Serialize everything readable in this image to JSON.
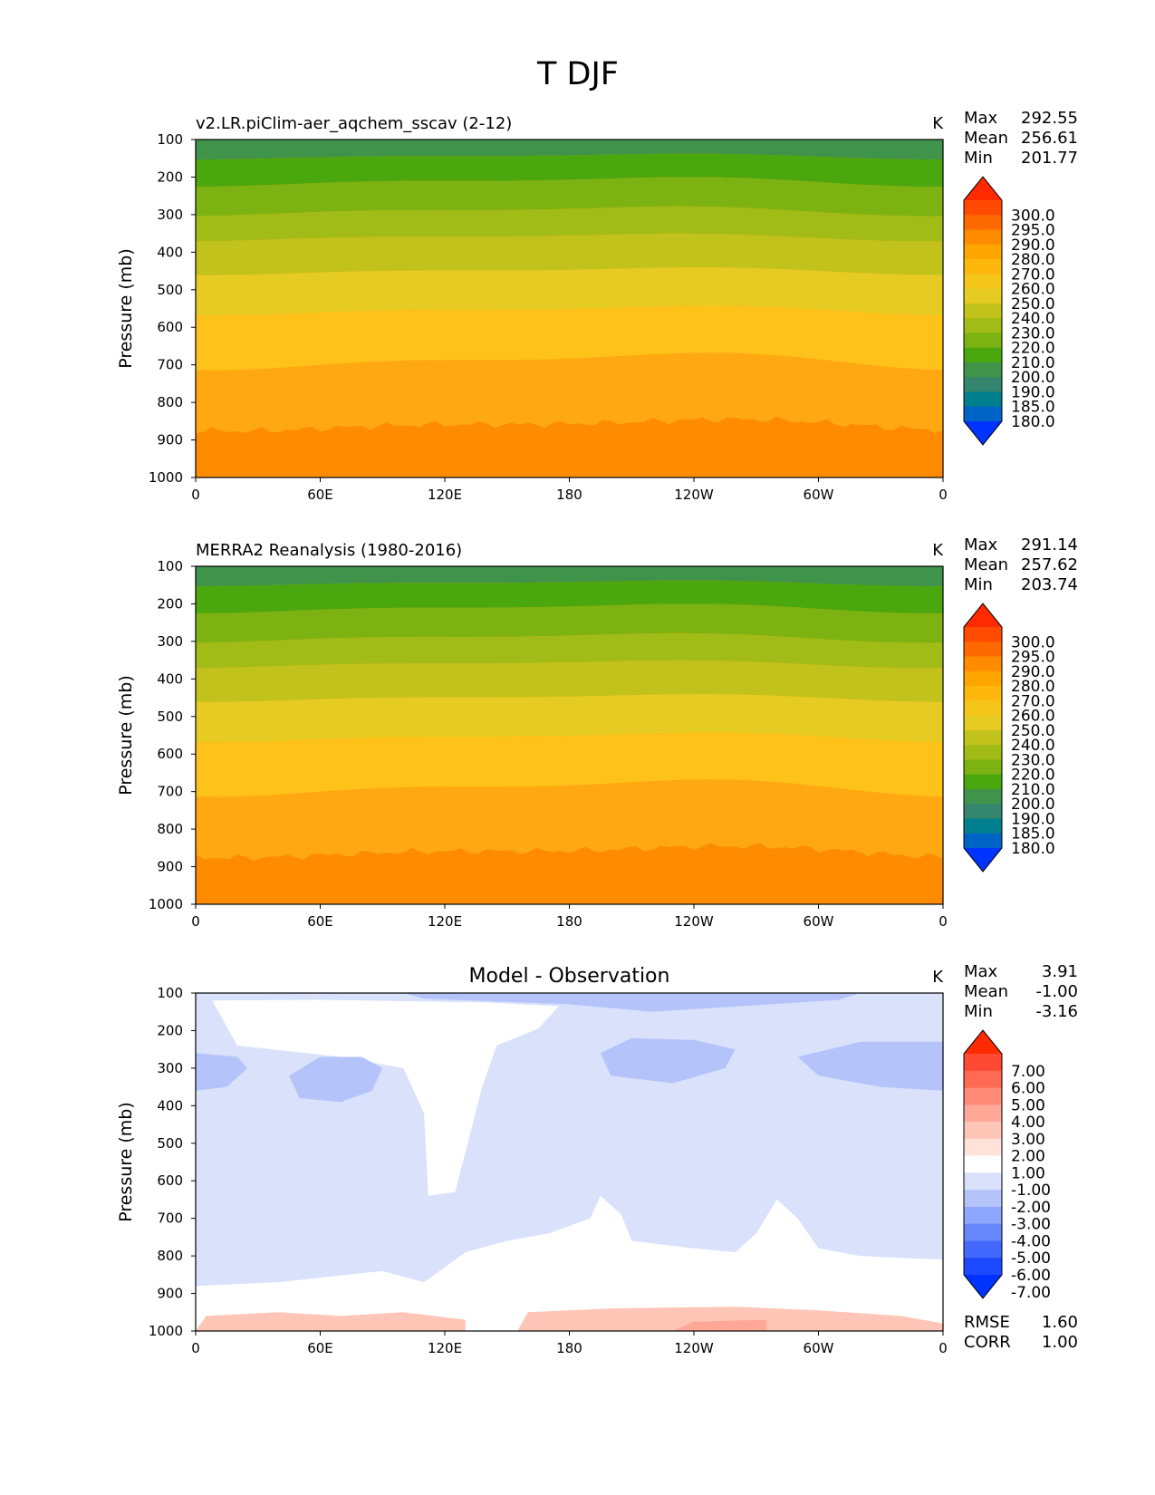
{
  "figure_title": "T DJF",
  "x_ticks": [
    "0",
    "60E",
    "120E",
    "180",
    "120W",
    "60W",
    "0"
  ],
  "y_ticks": [
    "100",
    "200",
    "300",
    "400",
    "500",
    "600",
    "700",
    "800",
    "900",
    "1000"
  ],
  "chart_data": [
    {
      "type": "heatmap",
      "title": "v2.LR.piClim-aer_aqchem_sscav (2-12)",
      "units": "K",
      "ylabel": "Pressure (mb)",
      "xlim": [
        0,
        360
      ],
      "ylim": [
        1000,
        100
      ],
      "stats": [
        {
          "label": "Max",
          "value": "292.55"
        },
        {
          "label": "Mean",
          "value": "256.61"
        },
        {
          "label": "Min",
          "value": "201.77"
        }
      ],
      "colorbar": {
        "levels": [
          "300.0",
          "295.0",
          "290.0",
          "280.0",
          "270.0",
          "260.0",
          "250.0",
          "240.0",
          "230.0",
          "220.0",
          "210.0",
          "200.0",
          "190.0",
          "185.0",
          "180.0"
        ],
        "colors": [
          "#ff2a00",
          "#ff4a00",
          "#ff6a00",
          "#ff8c00",
          "#ffa500",
          "#ffb70e",
          "#f5c51a",
          "#e6cc22",
          "#c2c21c",
          "#a1bc16",
          "#7cb312",
          "#4aa80e",
          "#3f934a",
          "#35866e",
          "#007f8e",
          "#0063c6",
          "#0033ff"
        ]
      },
      "bands": [
        {
          "label": "200-210",
          "color": "#3f934a"
        },
        {
          "label": "210-220",
          "color": "#4aa80e"
        },
        {
          "label": "220-230",
          "color": "#7cb312"
        },
        {
          "label": "230-240",
          "color": "#a1bc16"
        },
        {
          "label": "240-250",
          "color": "#c2c21c"
        },
        {
          "label": "250-260",
          "color": "#e6cc22"
        },
        {
          "label": "260-270",
          "color": "#ffc21a"
        },
        {
          "label": "270-280",
          "color": "#ffa812"
        },
        {
          "label": "280-290",
          "color": "#ff8c00"
        }
      ]
    },
    {
      "type": "heatmap",
      "title": "MERRA2 Reanalysis (1980-2016)",
      "units": "K",
      "ylabel": "Pressure (mb)",
      "xlim": [
        0,
        360
      ],
      "ylim": [
        1000,
        100
      ],
      "stats": [
        {
          "label": "Max",
          "value": "291.14"
        },
        {
          "label": "Mean",
          "value": "257.62"
        },
        {
          "label": "Min",
          "value": "203.74"
        }
      ],
      "colorbar": {
        "levels": [
          "300.0",
          "295.0",
          "290.0",
          "280.0",
          "270.0",
          "260.0",
          "250.0",
          "240.0",
          "230.0",
          "220.0",
          "210.0",
          "200.0",
          "190.0",
          "185.0",
          "180.0"
        ],
        "colors": [
          "#ff2a00",
          "#ff4a00",
          "#ff6a00",
          "#ff8c00",
          "#ffa500",
          "#ffb70e",
          "#f5c51a",
          "#e6cc22",
          "#c2c21c",
          "#a1bc16",
          "#7cb312",
          "#4aa80e",
          "#3f934a",
          "#35866e",
          "#007f8e",
          "#0063c6",
          "#0033ff"
        ]
      },
      "bands": [
        {
          "label": "200-210",
          "color": "#3f934a"
        },
        {
          "label": "210-220",
          "color": "#4aa80e"
        },
        {
          "label": "220-230",
          "color": "#7cb312"
        },
        {
          "label": "230-240",
          "color": "#a1bc16"
        },
        {
          "label": "240-250",
          "color": "#c2c21c"
        },
        {
          "label": "250-260",
          "color": "#e6cc22"
        },
        {
          "label": "260-270",
          "color": "#ffc21a"
        },
        {
          "label": "270-280",
          "color": "#ffa812"
        },
        {
          "label": "280-290",
          "color": "#ff8c00"
        }
      ]
    },
    {
      "type": "heatmap",
      "title": "Model - Observation",
      "units": "K",
      "ylabel": "Pressure (mb)",
      "xlim": [
        0,
        360
      ],
      "ylim": [
        1000,
        100
      ],
      "stats": [
        {
          "label": "Max",
          "value": "3.91"
        },
        {
          "label": "Mean",
          "value": "-1.00"
        },
        {
          "label": "Min",
          "value": "-3.16"
        }
      ],
      "extra_stats": [
        {
          "label": "RMSE",
          "value": "1.60"
        },
        {
          "label": "CORR",
          "value": "1.00"
        }
      ],
      "colorbar": {
        "levels": [
          "7.00",
          "6.00",
          "5.00",
          "4.00",
          "3.00",
          "2.00",
          "1.00",
          "-1.00",
          "-2.00",
          "-3.00",
          "-4.00",
          "-5.00",
          "-6.00",
          "-7.00"
        ],
        "colors": [
          "#ff2a00",
          "#ff4a33",
          "#ff6a55",
          "#ff8a75",
          "#ffa898",
          "#ffc6b8",
          "#ffe2da",
          "#ffffff",
          "#d9e1fb",
          "#b4c4fb",
          "#8ea6fb",
          "#6987fc",
          "#4368fd",
          "#1d4afe",
          "#0033ff"
        ]
      }
    }
  ]
}
